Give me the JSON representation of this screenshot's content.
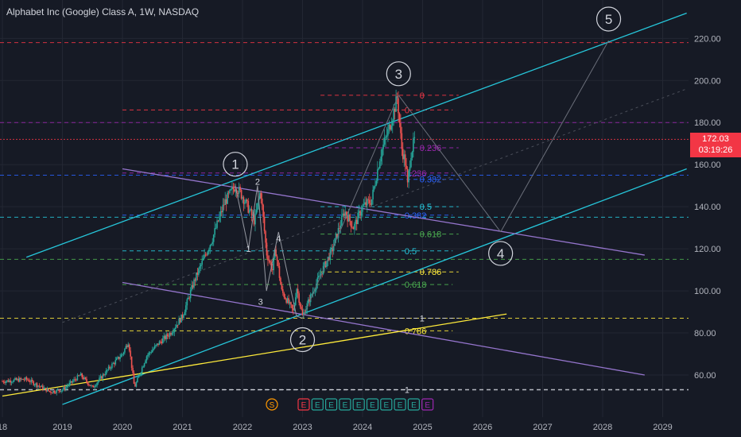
{
  "header": {
    "title": "Alphabet Inc (Google) Class A, 1W, NASDAQ"
  },
  "price_badge": {
    "price": "172.03",
    "countdown": "03:19:26"
  },
  "chart_data": {
    "type": "candlestick",
    "title": "Alphabet Inc (Google) Class A, 1W, NASDAQ",
    "ylim": [
      48,
      232
    ],
    "xlim": [
      2018.0,
      2029.5
    ],
    "y_ticks": [
      "220.00",
      "200.00",
      "180.00",
      "160.00",
      "140.00",
      "120.00",
      "100.00",
      "80.00",
      "60.00"
    ],
    "y_tick_values": [
      220,
      200,
      180,
      160,
      140,
      120,
      100,
      80,
      60
    ],
    "x_ticks": [
      "18",
      "2019",
      "2020",
      "2021",
      "2022",
      "2023",
      "2024",
      "2025",
      "2026",
      "2027",
      "2028",
      "2029"
    ],
    "x_tick_values": [
      2018.0,
      2019.0,
      2020.0,
      2021.0,
      2022.0,
      2023.0,
      2024.0,
      2025.0,
      2026.0,
      2027.0,
      2028.0,
      2029.0
    ],
    "price_path": [
      [
        2018.0,
        57
      ],
      [
        2018.4,
        58
      ],
      [
        2018.8,
        52
      ],
      [
        2019.0,
        53
      ],
      [
        2019.3,
        60
      ],
      [
        2019.5,
        54
      ],
      [
        2019.8,
        64
      ],
      [
        2020.0,
        70
      ],
      [
        2020.1,
        76
      ],
      [
        2020.2,
        54
      ],
      [
        2020.4,
        69
      ],
      [
        2020.6,
        75
      ],
      [
        2020.8,
        80
      ],
      [
        2021.0,
        88
      ],
      [
        2021.2,
        105
      ],
      [
        2021.5,
        125
      ],
      [
        2021.7,
        142
      ],
      [
        2021.88,
        150
      ],
      [
        2022.0,
        145
      ],
      [
        2022.2,
        133
      ],
      [
        2022.3,
        148
      ],
      [
        2022.4,
        118
      ],
      [
        2022.5,
        110
      ],
      [
        2022.55,
        120
      ],
      [
        2022.65,
        100
      ],
      [
        2022.85,
        90
      ],
      [
        2022.9,
        102
      ],
      [
        2023.0,
        88
      ],
      [
        2023.1,
        95
      ],
      [
        2023.3,
        108
      ],
      [
        2023.5,
        120
      ],
      [
        2023.7,
        138
      ],
      [
        2023.85,
        130
      ],
      [
        2024.0,
        140
      ],
      [
        2024.15,
        143
      ],
      [
        2024.3,
        165
      ],
      [
        2024.45,
        178
      ],
      [
        2024.58,
        192
      ],
      [
        2024.65,
        168
      ],
      [
        2024.72,
        160
      ],
      [
        2024.75,
        150
      ],
      [
        2024.8,
        165
      ],
      [
        2024.87,
        172.03
      ]
    ],
    "wave_labels": [
      {
        "label": "1",
        "x": 2021.88,
        "y": 150
      },
      {
        "label": "2",
        "x": 2023.0,
        "y": 87
      },
      {
        "label": "3",
        "x": 2024.6,
        "y": 193
      },
      {
        "label": "4",
        "x": 2026.3,
        "y": 128
      },
      {
        "label": "5",
        "x": 2028.1,
        "y": 219
      }
    ],
    "sub_labels": [
      {
        "label": "2",
        "x": 2022.25,
        "y": 152
      },
      {
        "label": "4",
        "x": 2022.6,
        "y": 125
      },
      {
        "label": "1",
        "x": 2022.1,
        "y": 120
      },
      {
        "label": "3",
        "x": 2022.3,
        "y": 95
      }
    ],
    "horizontal_levels": [
      {
        "y": 218,
        "color": "#f23645",
        "style": "dashed"
      },
      {
        "y": 180,
        "color": "#9c27b0",
        "style": "dashed"
      },
      {
        "y": 172.03,
        "color": "#f23645",
        "style": "dotted"
      },
      {
        "y": 155,
        "color": "#2962ff",
        "style": "dashed"
      },
      {
        "y": 135,
        "color": "#26c6da",
        "style": "dashed"
      },
      {
        "y": 115,
        "color": "#4caf50",
        "style": "dashed"
      },
      {
        "y": 87,
        "color": "#ffeb3b",
        "style": "dashed"
      },
      {
        "y": 53,
        "color": "#d1d4dc",
        "style": "dashed"
      }
    ],
    "fib_set_a": [
      {
        "ratio": "0",
        "y": 193,
        "color": "#f23645",
        "x_label": 2024.95
      },
      {
        "ratio": "0.236",
        "y": 168,
        "color": "#9c27b0",
        "x_label": 2024.95
      },
      {
        "ratio": "0.382",
        "y": 153,
        "color": "#2962ff",
        "x_label": 2024.95
      },
      {
        "ratio": "0.5",
        "y": 140,
        "color": "#26c6da",
        "x_label": 2024.95
      },
      {
        "ratio": "0.618",
        "y": 127,
        "color": "#4caf50",
        "x_label": 2024.95
      },
      {
        "ratio": "0.786",
        "y": 109,
        "color": "#ffeb3b",
        "x_label": 2024.95
      },
      {
        "ratio": "1",
        "y": 87,
        "color": "#d1d4dc",
        "x_label": 2024.95
      }
    ],
    "fib_set_b": [
      {
        "ratio": "0",
        "y": 186,
        "color": "#f23645",
        "x_label": 2024.7
      },
      {
        "ratio": "0.236",
        "y": 156,
        "color": "#9c27b0",
        "x_label": 2024.7
      },
      {
        "ratio": "0.382",
        "y": 136,
        "color": "#2962ff",
        "x_label": 2024.7
      },
      {
        "ratio": "0.5",
        "y": 119,
        "color": "#26c6da",
        "x_label": 2024.7
      },
      {
        "ratio": "0.618",
        "y": 103,
        "color": "#4caf50",
        "x_label": 2024.7
      },
      {
        "ratio": "0.786",
        "y": 81,
        "color": "#ffeb3b",
        "x_label": 2024.7
      },
      {
        "ratio": "1",
        "y": 53,
        "color": "#d1d4dc",
        "x_label": 2024.7
      }
    ],
    "trend_lines": [
      {
        "color": "#26c6da",
        "x1": 2018.4,
        "y1": 116,
        "x2": 2029.4,
        "y2": 232
      },
      {
        "color": "#26c6da",
        "x1": 2019.0,
        "y1": 46,
        "x2": 2029.4,
        "y2": 158
      },
      {
        "color": "#9575cd",
        "x1": 2020.0,
        "y1": 158,
        "x2": 2028.7,
        "y2": 117
      },
      {
        "color": "#9575cd",
        "x1": 2020.0,
        "y1": 104,
        "x2": 2028.7,
        "y2": 60
      },
      {
        "color": "#ffeb3b",
        "x1": 2018.0,
        "y1": 50,
        "x2": 2026.4,
        "y2": 89
      },
      {
        "color": "#6b6f7a",
        "x1": 2024.6,
        "y1": 193,
        "x2": 2026.3,
        "y2": 128
      },
      {
        "color": "#6b6f7a",
        "x1": 2026.3,
        "y1": 128,
        "x2": 2028.1,
        "y2": 219
      }
    ],
    "event_markers": [
      "S",
      "E",
      "E",
      "E",
      "E",
      "E",
      "E",
      "E",
      "E",
      "E",
      "E"
    ],
    "event_colors": [
      "#ff9800",
      "#f23645",
      "#26a69a",
      "#26a69a",
      "#26a69a",
      "#26a69a",
      "#26a69a",
      "#26a69a",
      "#26a69a",
      "#26a69a",
      "#9c27b0"
    ]
  }
}
